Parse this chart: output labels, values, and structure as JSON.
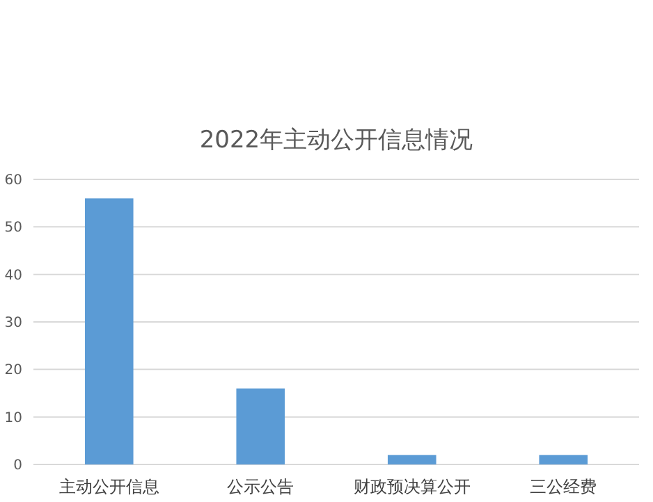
{
  "chart_data": {
    "type": "bar",
    "title": "2022年主动公开信息情况",
    "categories": [
      "主动公开信息",
      "公示公告",
      "财政预决算公开",
      "三公经费"
    ],
    "values": [
      56,
      16,
      2,
      2
    ],
    "color": "#5b9bd5",
    "ylim": [
      0,
      60
    ],
    "yticks": [
      0,
      10,
      20,
      30,
      40,
      50,
      60
    ],
    "grid": "y"
  }
}
